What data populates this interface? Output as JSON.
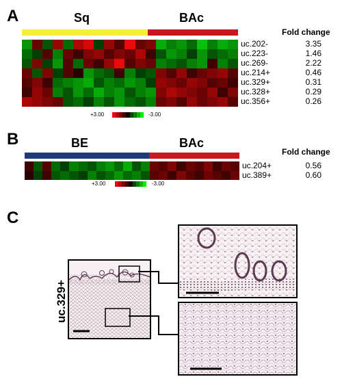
{
  "panel_a": {
    "letter": "A",
    "groups": [
      {
        "label": "Sq",
        "color": "#f5ef3a"
      },
      {
        "label": "BAc",
        "color": "#c8181e"
      }
    ],
    "fold_change_header": "Fold change",
    "rows": [
      {
        "label": "uc.202-",
        "fold": "3.35",
        "pattern": [
          -0.6,
          0.4,
          -0.3,
          0.6,
          -0.4,
          0.7,
          0.9,
          -0.2,
          0.6,
          0.3,
          1.0,
          0.4,
          0.5,
          -0.7,
          -0.5,
          -0.6,
          -0.4,
          -0.8,
          -0.5,
          -0.7,
          -0.6
        ]
      },
      {
        "label": "uc.223-",
        "fold": "1.46",
        "pattern": [
          -0.4,
          -0.2,
          0.3,
          -0.5,
          0.4,
          0.2,
          0.5,
          0.6,
          0.3,
          0.5,
          0.4,
          0.7,
          0.2,
          -0.3,
          -0.6,
          -0.5,
          -0.2,
          -0.6,
          -0.3,
          -0.4,
          -0.5
        ]
      },
      {
        "label": "uc.269-",
        "fold": "2.22",
        "pattern": [
          -0.3,
          0.5,
          -0.2,
          -0.6,
          0.3,
          -0.4,
          0.4,
          0.2,
          0.6,
          1.0,
          0.3,
          0.5,
          0.4,
          -0.5,
          -0.4,
          -0.3,
          -0.5,
          -0.6,
          0.2,
          -0.5,
          -0.3
        ]
      },
      {
        "label": "uc.214+",
        "fold": "0.46",
        "pattern": [
          0.4,
          -0.3,
          0.5,
          -0.2,
          0.3,
          0.1,
          -0.6,
          -0.4,
          -0.3,
          0.2,
          -0.5,
          -0.2,
          -0.3,
          0.5,
          0.3,
          0.6,
          0.2,
          0.4,
          0.5,
          0.6,
          0.3
        ]
      },
      {
        "label": "uc.329+",
        "fold": "0.31",
        "pattern": [
          0.3,
          0.5,
          0.2,
          -0.4,
          -0.5,
          -0.6,
          -0.7,
          -0.3,
          -0.5,
          -0.4,
          -0.6,
          -0.5,
          -0.2,
          0.6,
          0.5,
          0.4,
          0.6,
          0.5,
          0.3,
          0.4,
          0.2
        ]
      },
      {
        "label": "uc.328+",
        "fold": "0.29",
        "pattern": [
          0.2,
          0.6,
          0.4,
          -0.5,
          -0.3,
          -0.6,
          -0.4,
          -0.7,
          -0.5,
          -0.6,
          -0.3,
          -0.5,
          -0.6,
          0.5,
          0.7,
          0.6,
          0.5,
          0.4,
          0.6,
          0.2,
          0.5
        ]
      },
      {
        "label": "uc.356+",
        "fold": "0.26",
        "pattern": [
          0.7,
          0.6,
          0.5,
          0.4,
          -0.3,
          -0.4,
          -0.2,
          -0.5,
          -0.3,
          -0.6,
          -0.4,
          -0.3,
          -0.5,
          0.4,
          0.5,
          0.3,
          0.6,
          0.4,
          0.5,
          0.6,
          0.3
        ]
      }
    ],
    "scale": {
      "high": "+3.00",
      "low": "-3.00"
    }
  },
  "panel_b": {
    "letter": "B",
    "groups": [
      {
        "label": "BE",
        "color": "#1f3a7a"
      },
      {
        "label": "BAc",
        "color": "#c8181e"
      }
    ],
    "fold_change_header": "Fold change",
    "rows": [
      {
        "label": "uc.204+",
        "fold": "0.56",
        "pattern": [
          0.2,
          -0.3,
          0.3,
          -0.4,
          -0.2,
          -0.5,
          -0.4,
          -0.3,
          -0.5,
          -0.6,
          -0.4,
          -0.7,
          -0.3,
          -0.5,
          0.4,
          0.3,
          0.5,
          0.2,
          0.4,
          0.3,
          0.5,
          0.2,
          0.4,
          0.3
        ]
      },
      {
        "label": "uc.389+",
        "fold": "0.60",
        "pattern": [
          0.1,
          -0.2,
          0.2,
          -0.3,
          -0.4,
          -0.3,
          -0.2,
          -0.5,
          -0.3,
          -0.4,
          -0.6,
          -0.4,
          -0.5,
          -0.3,
          0.3,
          0.4,
          0.2,
          0.5,
          0.3,
          0.2,
          0.4,
          0.3,
          0.2,
          0.4
        ]
      }
    ],
    "scale": {
      "high": "+3.00",
      "low": "-3.00"
    }
  },
  "panel_c": {
    "letter": "C",
    "probe_label": "uc.329+"
  }
}
